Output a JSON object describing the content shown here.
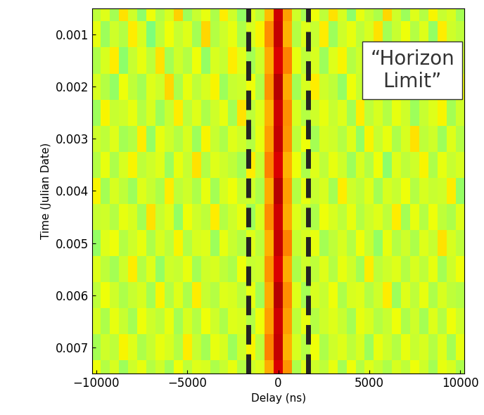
{
  "chart_data": {
    "type": "heatmap",
    "xlabel": "Delay (ns)",
    "ylabel": "Time (Julian Date)",
    "annotation": "“Horizon\nLimit”",
    "horizon_limit": [
      -1650,
      1650
    ],
    "delays": [
      -10000,
      -9500,
      -9000,
      -8500,
      -8000,
      -7500,
      -7000,
      -6500,
      -6000,
      -5500,
      -5000,
      -4500,
      -4000,
      -3500,
      -3000,
      -2500,
      -2000,
      -1500,
      -1000,
      -500,
      0,
      500,
      1000,
      1500,
      2000,
      2500,
      3000,
      3500,
      4000,
      4500,
      5000,
      5500,
      6000,
      6500,
      7000,
      7500,
      8000,
      8500,
      9000,
      9500,
      10000
    ],
    "times": [
      0.0005,
      0.001,
      0.0015,
      0.002,
      0.0025,
      0.003,
      0.0035,
      0.004,
      0.0045,
      0.005,
      0.0055,
      0.006,
      0.0065,
      0.007,
      0.0075
    ],
    "color_range": [
      0,
      100
    ],
    "cells": [
      [
        58,
        62,
        55,
        67,
        60,
        52,
        64,
        57,
        61,
        69,
        54,
        59,
        63,
        56,
        66,
        60,
        53,
        62,
        58,
        71,
        93,
        74,
        60,
        55,
        64,
        58,
        67,
        61,
        52,
        63,
        59,
        56,
        68,
        60,
        54,
        62,
        57,
        65,
        59,
        61,
        55
      ],
      [
        63,
        54,
        60,
        57,
        66,
        61,
        50,
        58,
        64,
        59,
        62,
        55,
        68,
        57,
        60,
        63,
        56,
        61,
        65,
        76,
        94,
        72,
        57,
        62,
        59,
        66,
        54,
        60,
        63,
        58,
        61,
        67,
        55,
        59,
        64,
        57,
        62,
        53,
        66,
        60,
        58
      ],
      [
        56,
        61,
        66,
        52,
        59,
        63,
        58,
        67,
        55,
        60,
        57,
        64,
        53,
        61,
        59,
        66,
        62,
        55,
        60,
        73,
        92,
        77,
        63,
        58,
        61,
        54,
        62,
        65,
        57,
        60,
        56,
        63,
        59,
        68,
        55,
        61,
        64,
        58,
        56,
        63,
        60
      ],
      [
        61,
        57,
        53,
        64,
        58,
        55,
        62,
        60,
        68,
        56,
        63,
        58,
        61,
        65,
        54,
        59,
        60,
        64,
        57,
        75,
        95,
        73,
        55,
        61,
        66,
        60,
        58,
        53,
        64,
        59,
        62,
        57,
        61,
        55,
        63,
        60,
        52,
        67,
        61,
        57,
        64
      ],
      [
        54,
        65,
        59,
        60,
        63,
        57,
        61,
        54,
        59,
        66,
        58,
        62,
        56,
        60,
        63,
        55,
        67,
        58,
        62,
        72,
        93,
        76,
        61,
        57,
        60,
        63,
        59,
        62,
        55,
        66,
        58,
        61,
        57,
        63,
        60,
        54,
        59,
        62,
        65,
        55,
        60
      ],
      [
        60,
        58,
        62,
        55,
        57,
        66,
        53,
        63,
        60,
        57,
        61,
        54,
        65,
        59,
        56,
        62,
        60,
        57,
        63,
        74,
        94,
        75,
        58,
        64,
        55,
        61,
        60,
        57,
        62,
        53,
        65,
        59,
        63,
        56,
        61,
        67,
        58,
        60,
        54,
        62,
        57
      ],
      [
        57,
        63,
        56,
        61,
        65,
        58,
        60,
        62,
        54,
        63,
        59,
        67,
        57,
        62,
        60,
        58,
        55,
        66,
        59,
        77,
        92,
        72,
        64,
        56,
        62,
        58,
        63,
        60,
        54,
        61,
        57,
        64,
        52,
        62,
        58,
        60,
        65,
        56,
        63,
        59,
        61
      ],
      [
        65,
        55,
        61,
        58,
        54,
        62,
        59,
        56,
        66,
        58,
        60,
        56,
        63,
        55,
        61,
        64,
        59,
        60,
        56,
        73,
        95,
        74,
        57,
        63,
        59,
        61,
        55,
        66,
        60,
        58,
        62,
        55,
        61,
        59,
        64,
        57,
        61,
        59,
        60,
        66,
        53
      ],
      [
        59,
        60,
        57,
        63,
        61,
        55,
        67,
        59,
        62,
        53,
        64,
        60,
        58,
        66,
        57,
        60,
        63,
        54,
        61,
        76,
        93,
        73,
        62,
        59,
        56,
        64,
        61,
        58,
        63,
        57,
        60,
        62,
        58,
        66,
        55,
        63,
        57,
        64,
        58,
        56,
        62
      ],
      [
        53,
        62,
        64,
        57,
        60,
        63,
        56,
        61,
        58,
        65,
        57,
        61,
        62,
        54,
        63,
        59,
        57,
        62,
        58,
        72,
        94,
        77,
        59,
        61,
        63,
        55,
        58,
        61,
        57,
        64,
        59,
        53,
        63,
        57,
        60,
        56,
        62,
        59,
        67,
        61,
        58
      ],
      [
        62,
        58,
        55,
        60,
        66,
        57,
        62,
        53,
        60,
        59,
        63,
        55,
        60,
        61,
        58,
        56,
        64,
        59,
        60,
        75,
        92,
        73,
        56,
        60,
        58,
        62,
        57,
        63,
        60,
        55,
        66,
        58,
        60,
        62,
        57,
        61,
        58,
        63,
        55,
        60,
        64
      ],
      [
        58,
        64,
        60,
        56,
        59,
        61,
        55,
        65,
        57,
        62,
        56,
        66,
        59,
        57,
        62,
        61,
        58,
        63,
        55,
        73,
        95,
        76,
        62,
        55,
        61,
        59,
        64,
        56,
        61,
        62,
        57,
        60,
        66,
        54,
        62,
        58,
        63,
        56,
        61,
        58,
        57
      ],
      [
        61,
        56,
        63,
        59,
        55,
        64,
        60,
        58,
        63,
        55,
        61,
        57,
        64,
        60,
        56,
        62,
        61,
        57,
        64,
        74,
        93,
        74,
        58,
        63,
        57,
        60,
        62,
        59,
        55,
        63,
        61,
        57,
        59,
        64,
        56,
        60,
        55,
        62,
        57,
        64,
        60
      ],
      [
        55,
        60,
        58,
        65,
        62,
        56,
        59,
        63,
        61,
        57,
        66,
        59,
        55,
        63,
        61,
        54,
        60,
        65,
        58,
        77,
        94,
        72,
        61,
        57,
        64,
        56,
        60,
        62,
        58,
        61,
        54,
        63,
        60,
        57,
        63,
        59,
        61,
        57,
        62,
        55,
        63
      ],
      [
        64,
        57,
        61,
        54,
        60,
        63,
        57,
        60,
        55,
        64,
        58,
        62,
        61,
        56,
        59,
        63,
        57,
        60,
        62,
        73,
        92,
        75,
        56,
        62,
        60,
        58,
        63,
        55,
        64,
        57,
        62,
        59,
        56,
        61,
        58,
        64,
        60,
        55,
        63,
        61,
        56
      ]
    ],
    "xlim": [
      -10240,
      10240
    ],
    "ylim": [
      0.0075,
      0.0005
    ],
    "xticks": [
      {
        "value": -10000,
        "label": "−10000"
      },
      {
        "value": -5000,
        "label": "−5000"
      },
      0,
      5000,
      10000
    ],
    "yticks": [
      0.001,
      0.002,
      0.003,
      0.004,
      0.005,
      0.006,
      0.007
    ],
    "grid": false
  }
}
